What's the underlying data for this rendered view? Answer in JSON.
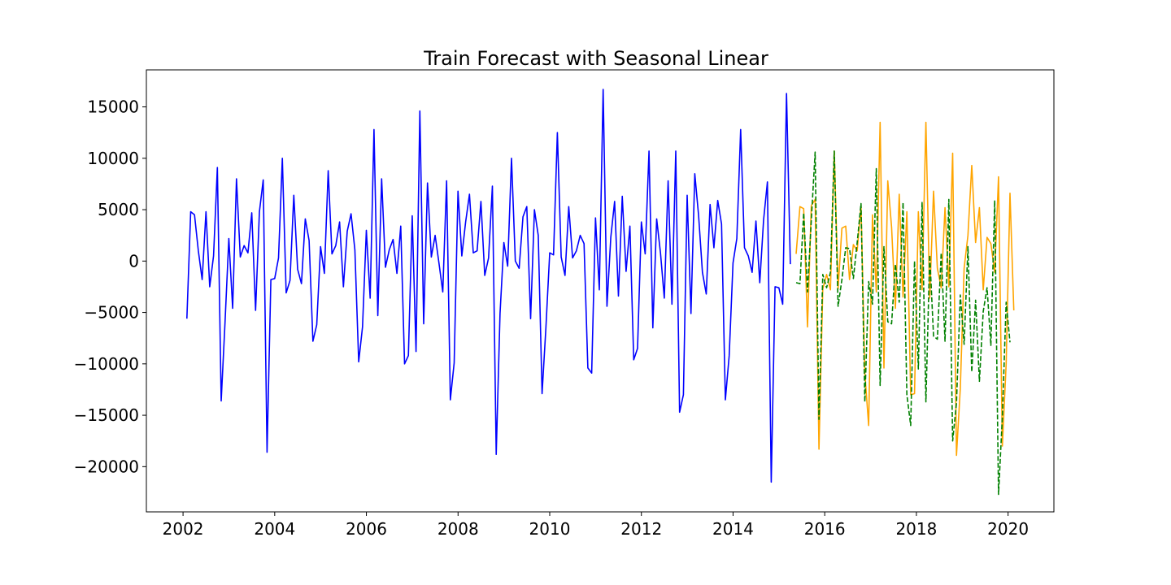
{
  "chart_data": {
    "type": "line",
    "title": "Train Forecast with Seasonal Linear",
    "xlabel": "",
    "ylabel": "",
    "xlim": [
      2001.2,
      2021.0
    ],
    "ylim": [
      -24400,
      18600
    ],
    "x_ticks": [
      2002,
      2004,
      2006,
      2008,
      2010,
      2012,
      2014,
      2016,
      2018,
      2020
    ],
    "x_tick_labels": [
      "2002",
      "2004",
      "2006",
      "2008",
      "2010",
      "2012",
      "2014",
      "2016",
      "2018",
      "2020"
    ],
    "y_ticks": [
      15000,
      10000,
      5000,
      0,
      -5000,
      -10000,
      -15000,
      -20000
    ],
    "y_tick_labels": [
      "15000",
      "10000",
      "5000",
      "0",
      "−5000",
      "−10000",
      "−15000",
      "−20000"
    ],
    "grid": false,
    "legend": "none",
    "series": [
      {
        "color": "#0000ff",
        "style": "solid",
        "x_start": 2002.083,
        "x_step": 0.08333,
        "values": [
          -5600,
          4800,
          4500,
          1000,
          -1800,
          4800,
          -2500,
          500,
          9100,
          -13600,
          -6000,
          2200,
          -4600,
          8000,
          400,
          1500,
          800,
          4700,
          -4800,
          4800,
          7900,
          -18600,
          -1800,
          -1700,
          300,
          10000,
          -3100,
          -1900,
          6400,
          -800,
          -2200,
          4100,
          2000,
          -7800,
          -6200,
          1400,
          -1200,
          8800,
          700,
          1500,
          3800,
          -2500,
          2900,
          4600,
          1100,
          -9800,
          -6400,
          3000,
          -3600,
          12800,
          -5300,
          8000,
          -600,
          1100,
          2100,
          -1200,
          3400,
          -10000,
          -9200,
          4400,
          -8800,
          14600,
          -6100,
          7600,
          400,
          2500,
          -200,
          -3000,
          7800,
          -13500,
          -9900,
          6800,
          500,
          3800,
          6500,
          800,
          1000,
          5800,
          -1400,
          300,
          7300,
          -18800,
          -5100,
          1800,
          -500,
          10000,
          0,
          -700,
          4300,
          5300,
          -5600,
          5000,
          2500,
          -12900,
          -6500,
          800,
          600,
          12500,
          400,
          -1400,
          5300,
          300,
          1000,
          2500,
          1700,
          -10400,
          -10900,
          4200,
          -2800,
          16700,
          -4400,
          2300,
          5800,
          -3400,
          6300,
          -1000,
          3400,
          -9600,
          -8500,
          3800,
          700,
          10700,
          -6500,
          4100,
          800,
          -3600,
          7800,
          -4200,
          10700,
          -14700,
          -13000,
          6400,
          -5100,
          8500,
          4400,
          -1100,
          -3200,
          5500,
          1300,
          5900,
          3600,
          -13500,
          -9200,
          -200,
          2200,
          12800,
          1300,
          500,
          -1100,
          3900,
          -2100,
          4000,
          7700,
          -21500,
          -2500,
          -2600,
          -4200,
          16300,
          -300
        ]
      },
      {
        "color": "#ffa500",
        "style": "solid",
        "x_start": 2015.375,
        "x_step": 0.08333,
        "values": [
          700,
          5300,
          5100,
          -6400,
          5400,
          6000,
          -18300,
          -2700,
          -1300,
          -2800,
          10700,
          -2700,
          3200,
          3400,
          -1800,
          1600,
          1000,
          5400,
          -10900,
          -16000,
          4500,
          -3000,
          13500,
          -10400,
          7800,
          3300,
          -4600,
          6500,
          -3500,
          4800,
          -13000,
          -12900,
          4800,
          -2800,
          13500,
          -3600,
          6800,
          -700,
          -2600,
          5200,
          -2500,
          10500,
          -18900,
          -12400,
          -700,
          2500,
          9300,
          1800,
          5200,
          -2800,
          2300,
          1700,
          -1100,
          8200,
          -18000,
          -10000,
          6600,
          -4800
        ]
      },
      {
        "color": "#008000",
        "style": "dashed",
        "x_start": 2015.375,
        "x_step": 0.08333,
        "values": [
          -2100,
          -2200,
          4700,
          -3000,
          4000,
          10600,
          -15400,
          -1300,
          -2600,
          -1100,
          10700,
          -4400,
          -1800,
          1300,
          1200,
          -1700,
          1800,
          5600,
          -13700,
          -2000,
          -4200,
          9000,
          -12100,
          1400,
          -5900,
          -6100,
          -300,
          -4000,
          5700,
          -13000,
          -16000,
          0,
          -10500,
          5700,
          -13700,
          600,
          -7300,
          -7600,
          800,
          -7800,
          6000,
          -17500,
          -13800,
          -3300,
          -8100,
          1400,
          -10800,
          -3800,
          -11700,
          -4900,
          -2600,
          -8200,
          5900,
          -22700,
          -15200,
          -4000,
          -7900
        ]
      }
    ]
  }
}
